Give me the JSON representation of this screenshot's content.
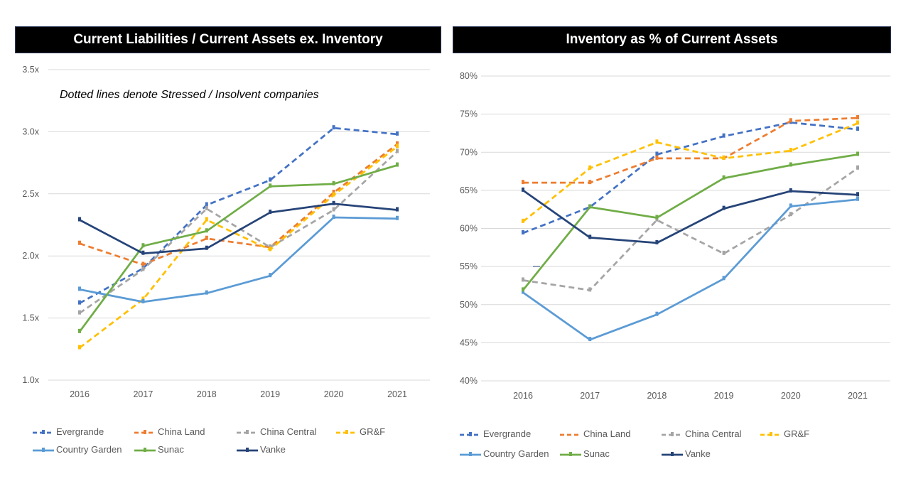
{
  "chart_data": [
    {
      "type": "line",
      "title": "Current Liabilities / Current Assets ex. Inventory",
      "annotation": "Dotted lines denote Stressed / Insolvent companies",
      "xlabel": "",
      "ylabel": "",
      "categories": [
        "2016",
        "2017",
        "2018",
        "2019",
        "2020",
        "2021"
      ],
      "ylim": [
        1.0,
        3.5
      ],
      "yticks": [
        1.0,
        1.5,
        2.0,
        2.5,
        3.0,
        3.5
      ],
      "ytick_labels": [
        "1.0x",
        "1.5x",
        "2.0x",
        "2.5x",
        "3.0x",
        "3.5x"
      ],
      "grid": true,
      "legend_position": "bottom",
      "series": [
        {
          "name": "Evergrande",
          "color": "#4472c4",
          "dashed": true,
          "values": [
            1.62,
            1.9,
            2.41,
            2.61,
            3.03,
            2.98
          ]
        },
        {
          "name": "China Land",
          "color": "#ed7d31",
          "dashed": true,
          "values": [
            2.1,
            1.93,
            2.14,
            2.07,
            2.51,
            2.9
          ]
        },
        {
          "name": "China Central",
          "color": "#a5a5a5",
          "dashed": true,
          "values": [
            1.54,
            1.89,
            2.38,
            2.07,
            2.37,
            2.84
          ]
        },
        {
          "name": "GR&F",
          "color": "#ffc000",
          "dashed": true,
          "values": [
            1.26,
            1.65,
            2.29,
            2.05,
            2.49,
            2.88
          ]
        },
        {
          "name": "Country Garden",
          "color": "#5b9bd5",
          "dashed": false,
          "values": [
            1.73,
            1.63,
            1.7,
            1.84,
            2.31,
            2.3
          ]
        },
        {
          "name": "Sunac",
          "color": "#70ad47",
          "dashed": false,
          "values": [
            1.39,
            2.08,
            2.2,
            2.56,
            2.58,
            2.73
          ]
        },
        {
          "name": "Vanke",
          "color": "#264478",
          "dashed": false,
          "values": [
            2.29,
            2.02,
            2.06,
            2.35,
            2.42,
            2.37
          ]
        }
      ]
    },
    {
      "type": "line",
      "title": "Inventory as % of Current Assets",
      "xlabel": "",
      "ylabel": "",
      "categories": [
        "2016",
        "2017",
        "2018",
        "2019",
        "2020",
        "2021"
      ],
      "ylim": [
        40,
        80
      ],
      "yticks": [
        40,
        45,
        50,
        55,
        60,
        65,
        70,
        75,
        80
      ],
      "ytick_labels": [
        "40%",
        "45%",
        "50%",
        "55%",
        "60%",
        "65%",
        "70%",
        "75%",
        "80%"
      ],
      "grid": true,
      "legend_position": "bottom",
      "series": [
        {
          "name": "Evergrande",
          "color": "#4472c4",
          "dashed": true,
          "values": [
            59.4,
            62.8,
            69.7,
            72.1,
            73.9,
            73.0
          ]
        },
        {
          "name": "China Land",
          "color": "#ed7d31",
          "dashed": true,
          "values": [
            66.0,
            66.0,
            69.2,
            69.2,
            74.1,
            74.5
          ]
        },
        {
          "name": "China Central",
          "color": "#a5a5a5",
          "dashed": true,
          "values": [
            53.2,
            51.9,
            61.1,
            56.7,
            61.8,
            67.9
          ]
        },
        {
          "name": "GR&F",
          "color": "#ffc000",
          "dashed": true,
          "values": [
            60.9,
            67.9,
            71.3,
            69.2,
            70.2,
            73.8
          ]
        },
        {
          "name": "Country Garden",
          "color": "#5b9bd5",
          "dashed": false,
          "values": [
            51.6,
            45.4,
            48.7,
            53.4,
            62.9,
            63.8
          ]
        },
        {
          "name": "Sunac",
          "color": "#70ad47",
          "dashed": false,
          "values": [
            51.9,
            62.8,
            61.4,
            66.6,
            68.3,
            69.7
          ]
        },
        {
          "name": "Vanke",
          "color": "#264478",
          "dashed": false,
          "values": [
            65.0,
            58.8,
            58.1,
            62.6,
            64.9,
            64.4
          ]
        }
      ]
    }
  ]
}
